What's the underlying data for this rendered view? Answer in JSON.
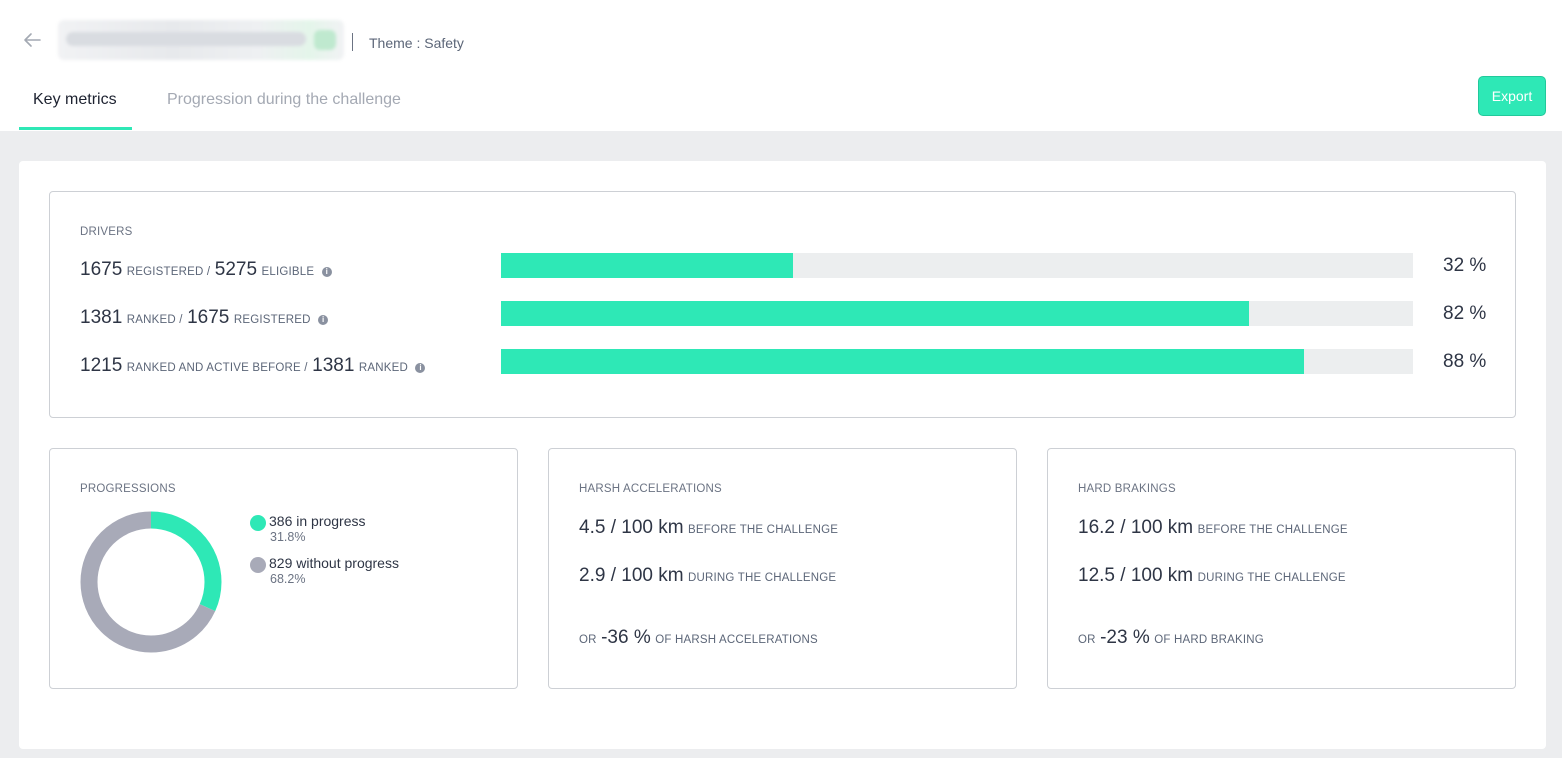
{
  "header": {
    "theme": "Theme : Safety"
  },
  "tabs": [
    {
      "label": "Key metrics",
      "active": true
    },
    {
      "label": "Progression during the challenge",
      "active": false
    }
  ],
  "export_label": "Export",
  "colors": {
    "accent": "#2ee8b6",
    "grey_series": "#a8aab8",
    "track": "#eceeef"
  },
  "drivers": {
    "label": "DRIVERS",
    "rows": [
      {
        "num1": "1675",
        "txt1": "REGISTERED /",
        "num2": "5275",
        "txt2": "ELIGIBLE",
        "pct_label": "32 %",
        "fraction": 0.32
      },
      {
        "num1": "1381",
        "txt1": "RANKED /",
        "num2": "1675",
        "txt2": "REGISTERED",
        "pct_label": "82 %",
        "fraction": 0.82
      },
      {
        "num1": "1215",
        "txt1": "RANKED AND ACTIVE BEFORE /",
        "num2": "1381",
        "txt2": "RANKED",
        "pct_label": "88 %",
        "fraction": 0.88
      }
    ]
  },
  "progressions": {
    "label": "PROGRESSIONS",
    "items": [
      {
        "text": "386 in progress",
        "pct": "31.8%",
        "value": 386,
        "color": "#2ee8b6"
      },
      {
        "text": "829 without progress",
        "pct": "68.2%",
        "value": 829,
        "color": "#a8aab8"
      }
    ]
  },
  "harsh": {
    "label": "HARSH ACCELERATIONS",
    "before_value": "4.5 / 100 km",
    "before_text": "BEFORE THE CHALLENGE",
    "during_value": "2.9 / 100 km",
    "during_text": "DURING THE CHALLENGE",
    "or_text": "OR",
    "delta": "-36 %",
    "delta_text": "OF HARSH ACCELERATIONS"
  },
  "brakings": {
    "label": "HARD BRAKINGS",
    "before_value": "16.2 / 100 km",
    "before_text": "BEFORE THE CHALLENGE",
    "during_value": "12.5 / 100 km",
    "during_text": "DURING THE CHALLENGE",
    "or_text": "OR",
    "delta": "-23 %",
    "delta_text": "OF HARD BRAKING"
  }
}
